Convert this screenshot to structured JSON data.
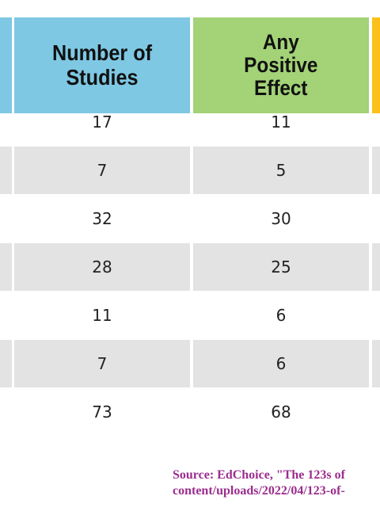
{
  "chart_data": {
    "type": "table",
    "columns": [
      {
        "label_lines": [
          "Number of",
          "Studies"
        ],
        "color": "#7ec8e3"
      },
      {
        "label_lines": [
          "Any",
          "Positive",
          "Effect"
        ],
        "color": "#a3d277"
      }
    ],
    "rows": [
      {
        "studies": "17",
        "positive": "11"
      },
      {
        "studies": "7",
        "positive": "5"
      },
      {
        "studies": "32",
        "positive": "30"
      },
      {
        "studies": "28",
        "positive": "25"
      },
      {
        "studies": "11",
        "positive": "6"
      },
      {
        "studies": "7",
        "positive": "6"
      },
      {
        "studies": "73",
        "positive": "68"
      }
    ],
    "row_shading": "alternating grey",
    "next_column_color": "#f9c11a"
  },
  "source": {
    "line1": "Source: EdChoice, \"The 123s of",
    "line2": "content/uploads/2022/04/123-of-"
  }
}
